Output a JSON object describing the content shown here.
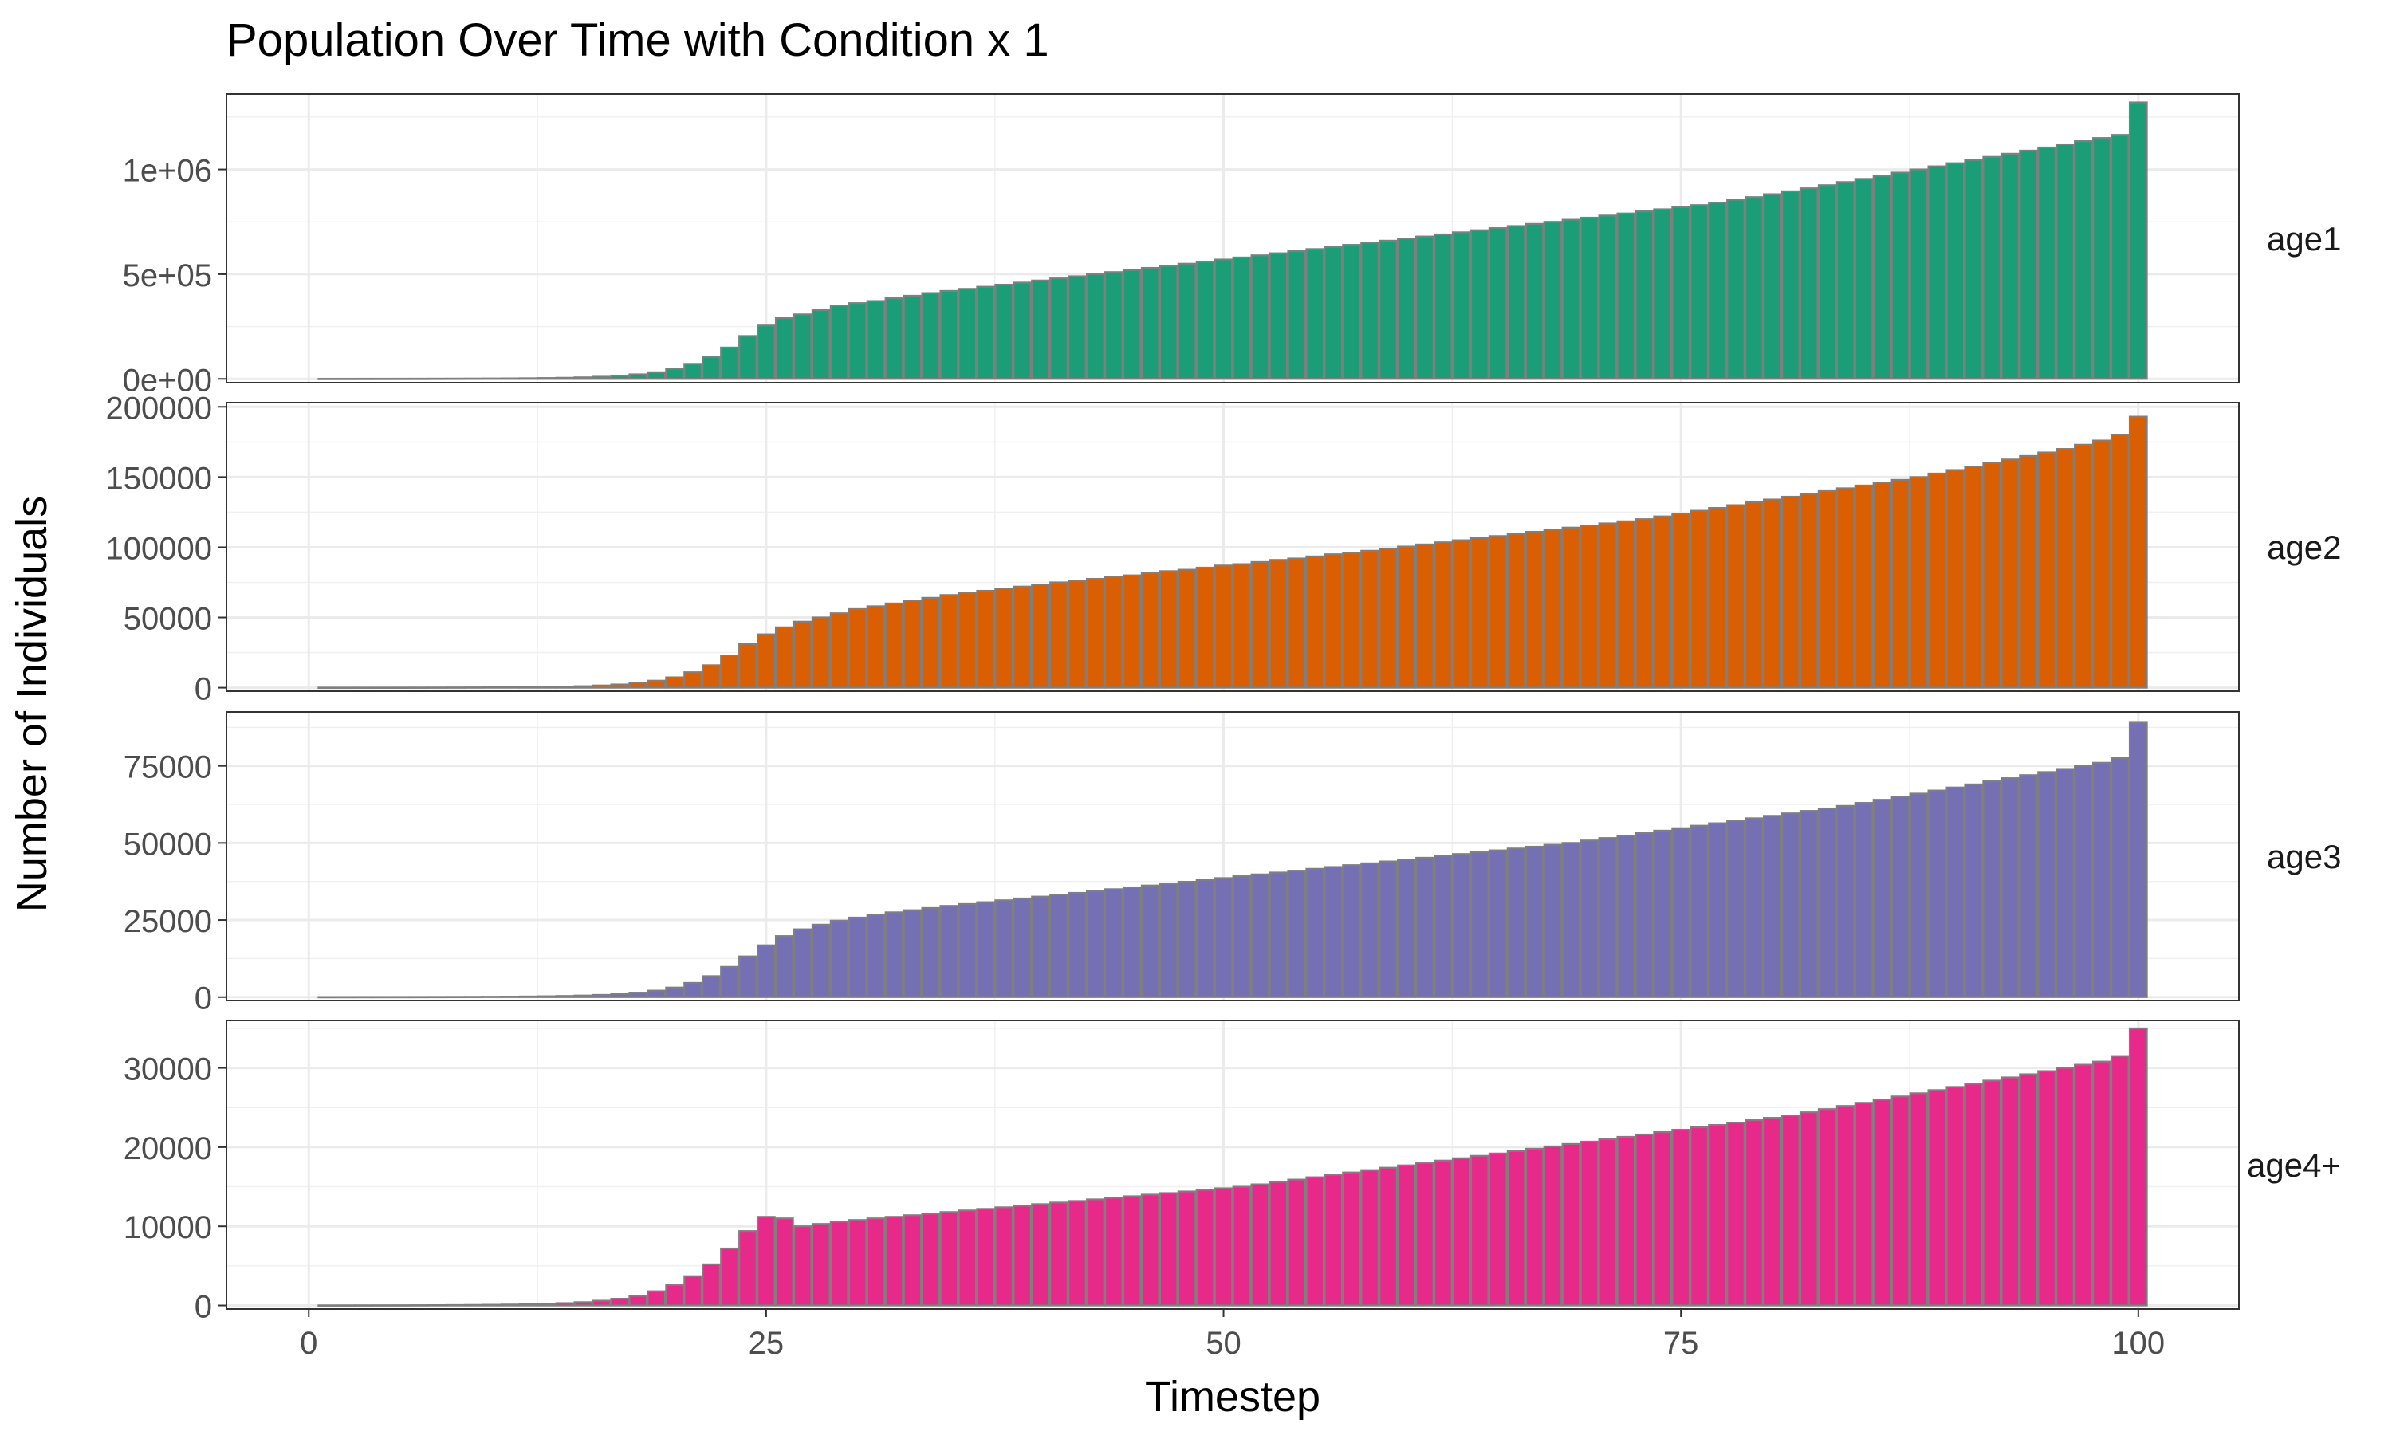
{
  "chart_data": {
    "type": "bar",
    "title": "Population Over Time with Condition x 1",
    "xlabel": "Timestep",
    "ylabel": "Number of Individuals",
    "xlim": [
      0,
      100
    ],
    "x_ticks": [
      "0",
      "25",
      "50",
      "75",
      "100"
    ],
    "grid": true,
    "legend": "none",
    "bar_outline_color": "#7f7f7f",
    "x": [
      1,
      2,
      3,
      4,
      5,
      6,
      7,
      8,
      9,
      10,
      11,
      12,
      13,
      14,
      15,
      16,
      17,
      18,
      19,
      20,
      21,
      22,
      23,
      24,
      25,
      26,
      27,
      28,
      29,
      30,
      31,
      32,
      33,
      34,
      35,
      36,
      37,
      38,
      39,
      40,
      41,
      42,
      43,
      44,
      45,
      46,
      47,
      48,
      49,
      50,
      51,
      52,
      53,
      54,
      55,
      56,
      57,
      58,
      59,
      60,
      61,
      62,
      63,
      64,
      65,
      66,
      67,
      68,
      69,
      70,
      71,
      72,
      73,
      74,
      75,
      76,
      77,
      78,
      79,
      80,
      81,
      82,
      83,
      84,
      85,
      86,
      87,
      88,
      89,
      90,
      91,
      92,
      93,
      94,
      95,
      96,
      97,
      98,
      99,
      100
    ],
    "series": [
      {
        "name": "age1",
        "color": "#1b9e77",
        "ylim": [
          -18000,
          1360000
        ],
        "y_ticks": [
          0,
          500000,
          1000000
        ],
        "y_tick_labels": [
          "0e+00",
          "5e+05",
          "1e+06"
        ],
        "values": [
          500,
          600,
          700,
          800,
          900,
          1000,
          1200,
          1400,
          1700,
          2000,
          2500,
          3200,
          4200,
          5500,
          7500,
          10500,
          15000,
          22000,
          32000,
          48000,
          72000,
          105000,
          150000,
          205000,
          255000,
          290000,
          308000,
          328000,
          350000,
          362000,
          372000,
          385000,
          397000,
          410000,
          420000,
          430000,
          440000,
          450000,
          460000,
          470000,
          480000,
          490000,
          500000,
          510000,
          520000,
          530000,
          540000,
          550000,
          560000,
          570000,
          580000,
          590000,
          600000,
          610000,
          620000,
          630000,
          640000,
          650000,
          660000,
          670000,
          680000,
          690000,
          700000,
          710000,
          720000,
          730000,
          740000,
          750000,
          760000,
          770000,
          780000,
          790000,
          800000,
          810000,
          820000,
          830000,
          842000,
          855000,
          868000,
          882000,
          896000,
          910000,
          925000,
          940000,
          955000,
          970000,
          985000,
          1000000,
          1015000,
          1030000,
          1045000,
          1060000,
          1075000,
          1090000,
          1105000,
          1120000,
          1135000,
          1150000,
          1165000,
          1320000
        ]
      },
      {
        "name": "age2",
        "color": "#d95f02",
        "ylim": [
          -2500,
          203000
        ],
        "y_ticks": [
          0,
          50000,
          100000,
          150000,
          200000
        ],
        "y_tick_labels": [
          "0",
          "50000",
          "100000",
          "150000",
          "200000"
        ],
        "values": [
          80,
          90,
          100,
          110,
          120,
          140,
          160,
          190,
          230,
          280,
          350,
          450,
          600,
          800,
          1100,
          1600,
          2300,
          3400,
          5000,
          7400,
          11000,
          16000,
          23000,
          31000,
          38000,
          43000,
          47000,
          50000,
          53000,
          56000,
          58000,
          60000,
          62000,
          64000,
          66000,
          67500,
          69000,
          70500,
          72000,
          73500,
          75000,
          76000,
          77500,
          79000,
          80000,
          81500,
          83000,
          84000,
          85500,
          87000,
          88000,
          89500,
          91000,
          92000,
          93500,
          95000,
          96000,
          97500,
          99000,
          100500,
          102000,
          103500,
          105000,
          106500,
          108000,
          109500,
          111000,
          112500,
          114000,
          115500,
          117000,
          118500,
          120000,
          122000,
          124000,
          126000,
          128000,
          130000,
          132000,
          134000,
          136000,
          138000,
          140000,
          142000,
          144000,
          146000,
          148000,
          150000,
          152500,
          155000,
          157500,
          160000,
          162500,
          165000,
          167500,
          170000,
          173000,
          176000,
          180000,
          193000
        ]
      },
      {
        "name": "age3",
        "color": "#7570b3",
        "ylim": [
          -1100,
          92500
        ],
        "y_ticks": [
          0,
          25000,
          50000,
          75000
        ],
        "y_tick_labels": [
          "0",
          "25000",
          "50000",
          "75000"
        ],
        "values": [
          30,
          35,
          40,
          45,
          50,
          60,
          70,
          85,
          100,
          130,
          160,
          210,
          280,
          380,
          520,
          720,
          1000,
          1450,
          2100,
          3100,
          4600,
          6800,
          9800,
          13200,
          16800,
          19800,
          22000,
          23500,
          24800,
          25800,
          26700,
          27500,
          28200,
          28900,
          29600,
          30200,
          30800,
          31400,
          32000,
          32600,
          33200,
          33800,
          34400,
          35000,
          35600,
          36200,
          36800,
          37400,
          38000,
          38600,
          39200,
          39800,
          40400,
          41000,
          41600,
          42200,
          42800,
          43400,
          44000,
          44600,
          45200,
          45800,
          46400,
          47000,
          47600,
          48200,
          48800,
          49400,
          50000,
          50800,
          51600,
          52400,
          53200,
          54000,
          54800,
          55600,
          56400,
          57200,
          58000,
          58800,
          59600,
          60400,
          61200,
          62000,
          63000,
          64000,
          65000,
          66000,
          67000,
          68000,
          69000,
          70000,
          71000,
          72000,
          73000,
          74000,
          75000,
          76000,
          77500,
          89000
        ]
      },
      {
        "name": "age4+",
        "color": "#e7298a",
        "ylim": [
          -450,
          36000
        ],
        "y_ticks": [
          0,
          10000,
          20000,
          30000
        ],
        "y_tick_labels": [
          "0",
          "10000",
          "20000",
          "30000"
        ],
        "values": [
          15,
          18,
          22,
          26,
          30,
          36,
          44,
          55,
          70,
          90,
          120,
          160,
          220,
          300,
          420,
          600,
          850,
          1200,
          1800,
          2600,
          3700,
          5200,
          7200,
          9400,
          11200,
          11000,
          10000,
          10300,
          10600,
          10800,
          11000,
          11200,
          11400,
          11600,
          11800,
          12000,
          12200,
          12400,
          12600,
          12800,
          13000,
          13200,
          13400,
          13600,
          13800,
          14000,
          14200,
          14400,
          14600,
          14800,
          15000,
          15300,
          15600,
          15900,
          16200,
          16500,
          16800,
          17100,
          17400,
          17700,
          18000,
          18300,
          18600,
          18900,
          19200,
          19500,
          19800,
          20100,
          20400,
          20700,
          21000,
          21300,
          21600,
          21900,
          22200,
          22500,
          22800,
          23100,
          23400,
          23700,
          24000,
          24400,
          24800,
          25200,
          25600,
          26000,
          26400,
          26800,
          27200,
          27600,
          28000,
          28400,
          28800,
          29200,
          29600,
          30000,
          30400,
          30800,
          31500,
          35000
        ]
      }
    ]
  }
}
